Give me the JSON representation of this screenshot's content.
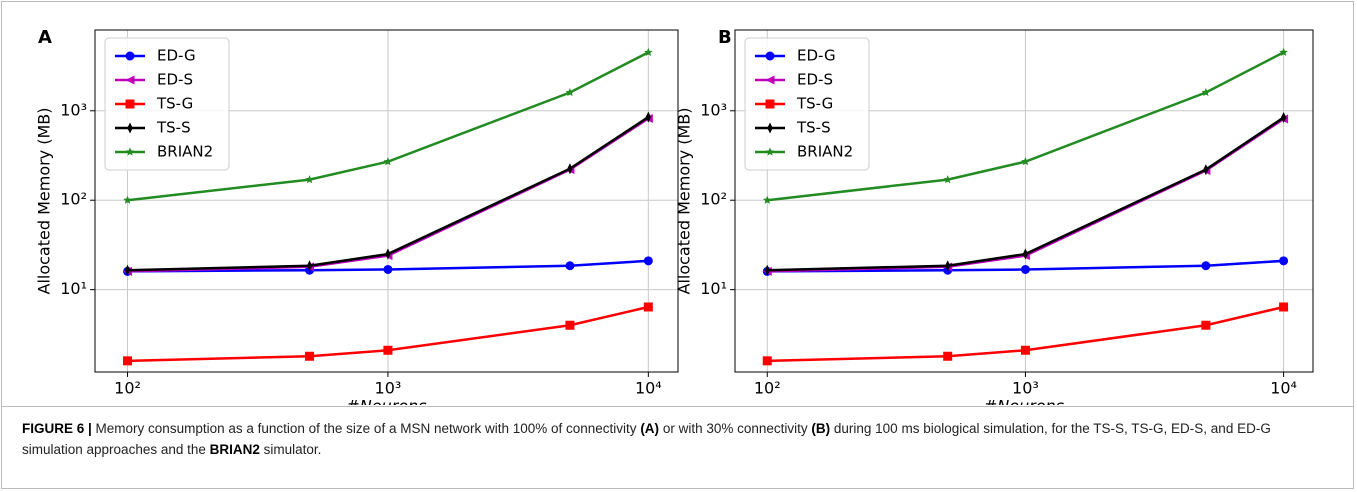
{
  "chart_data": [
    {
      "type": "line",
      "panel_label": "A",
      "xlabel": "#Neurons",
      "ylabel": "Allocated Memory (MB)",
      "x": [
        100,
        500,
        1000,
        5000,
        10000
      ],
      "log_x": true,
      "log_y": true,
      "grid": true,
      "legend": "upper left",
      "xlim": [
        75,
        13000
      ],
      "ylim": [
        1.2,
        8000
      ],
      "xticks": [
        {
          "value": 100,
          "label": "10²"
        },
        {
          "value": 1000,
          "label": "10³"
        },
        {
          "value": 10000,
          "label": "10⁴"
        }
      ],
      "yticks": [
        {
          "value": 10,
          "label": "10¹"
        },
        {
          "value": 100,
          "label": "10²"
        },
        {
          "value": 1000,
          "label": "10³"
        }
      ],
      "series": [
        {
          "name": "ED-G",
          "color": "#0000ff",
          "marker": "circle",
          "values": [
            16,
            16.5,
            16.8,
            18.5,
            21
          ]
        },
        {
          "name": "ED-S",
          "color": "#bf00bf",
          "marker": "triangle-left",
          "values": [
            16,
            18,
            24,
            220,
            820
          ]
        },
        {
          "name": "TS-G",
          "color": "#ff0000",
          "marker": "square",
          "values": [
            1.6,
            1.8,
            2.1,
            4,
            6.4
          ]
        },
        {
          "name": "TS-S",
          "color": "#000000",
          "marker": "diamond",
          "values": [
            16.5,
            18.5,
            25,
            225,
            850
          ]
        },
        {
          "name": "BRIAN2",
          "color": "#228b22",
          "marker": "star",
          "values": [
            100,
            170,
            270,
            1600,
            4500
          ]
        }
      ]
    },
    {
      "type": "line",
      "panel_label": "B",
      "xlabel": "#Neurons",
      "ylabel": "Allocated Memory (MB)",
      "x": [
        100,
        500,
        1000,
        5000,
        10000
      ],
      "log_x": true,
      "log_y": true,
      "grid": true,
      "legend": "upper left",
      "xlim": [
        75,
        13000
      ],
      "ylim": [
        1.2,
        8000
      ],
      "xticks": [
        {
          "value": 100,
          "label": "10²"
        },
        {
          "value": 1000,
          "label": "10³"
        },
        {
          "value": 10000,
          "label": "10⁴"
        }
      ],
      "yticks": [
        {
          "value": 10,
          "label": "10¹"
        },
        {
          "value": 100,
          "label": "10²"
        },
        {
          "value": 1000,
          "label": "10³"
        }
      ],
      "series": [
        {
          "name": "ED-G",
          "color": "#0000ff",
          "marker": "circle",
          "values": [
            16,
            16.5,
            16.8,
            18.5,
            21
          ]
        },
        {
          "name": "ED-S",
          "color": "#bf00bf",
          "marker": "triangle-left",
          "values": [
            16,
            18,
            24,
            215,
            810
          ]
        },
        {
          "name": "TS-G",
          "color": "#ff0000",
          "marker": "square",
          "values": [
            1.6,
            1.8,
            2.1,
            4,
            6.4
          ]
        },
        {
          "name": "TS-S",
          "color": "#000000",
          "marker": "diamond",
          "values": [
            16.5,
            18.5,
            25,
            220,
            840
          ]
        },
        {
          "name": "BRIAN2",
          "color": "#228b22",
          "marker": "star",
          "values": [
            100,
            170,
            270,
            1600,
            4500
          ]
        }
      ]
    }
  ],
  "caption": [
    {
      "text": "FIGURE 6 |",
      "bold": true
    },
    {
      "text": " Memory consumption as a function of the size of a MSN network with 100% of connectivity ",
      "bold": false
    },
    {
      "text": "(A)",
      "bold": true
    },
    {
      "text": " or with 30% connectivity ",
      "bold": false
    },
    {
      "text": "(B)",
      "bold": true
    },
    {
      "text": " during 100 ms biological simulation, for the TS-S, TS-G, ED-S, and ED-G simulation approaches and the ",
      "bold": false
    },
    {
      "text": "BRIAN2",
      "bold": true
    },
    {
      "text": " simulator.",
      "bold": false
    }
  ]
}
